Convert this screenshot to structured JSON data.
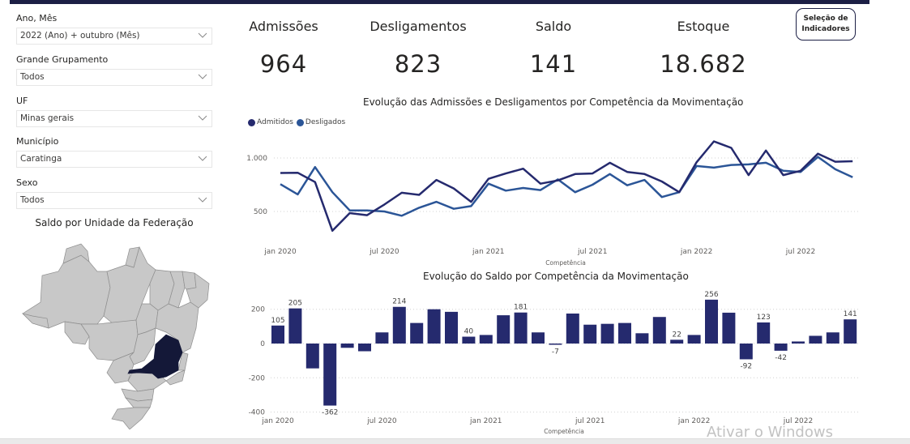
{
  "filters": [
    {
      "label": "Ano, Mês",
      "value": "2022 (Ano) + outubro (Mês)"
    },
    {
      "label": "Grande Grupamento",
      "value": "Todos"
    },
    {
      "label": "UF",
      "value": "Minas gerais"
    },
    {
      "label": "Município",
      "value": "Caratinga"
    },
    {
      "label": "Sexo",
      "value": "Todos"
    }
  ],
  "map": {
    "title": "Saldo por Unidade da Federação",
    "highlighted_state": "Minas Gerais",
    "base_color": "#c8c8c8",
    "highlight_color": "#141838"
  },
  "kpis": [
    {
      "label": "Admissões",
      "value": "964"
    },
    {
      "label": "Desligamentos",
      "value": "823"
    },
    {
      "label": "Saldo",
      "value": "141"
    },
    {
      "label": "Estoque",
      "value": "18.682"
    }
  ],
  "selection_button": {
    "line1": "Seleção de",
    "line2": "Indicadores"
  },
  "colors": {
    "admitidos": "#252a6e",
    "desligados": "#2b5597",
    "bars": "#252a6e",
    "topbar": "#1c1f45"
  },
  "watermark": "Ativar o Windows",
  "chart_data": [
    {
      "type": "line",
      "title": "Evolução das Admissões e Desligamentos por Competência da Movimentação",
      "xlabel": "Competência",
      "ylabel": "",
      "ylim": [
        200,
        1200
      ],
      "yticks": [
        500,
        1000
      ],
      "ytick_labels": [
        "500",
        "1.000"
      ],
      "xtick_labels": [
        "jan 2020",
        "jul 2020",
        "jan 2021",
        "jul 2021",
        "jan 2022",
        "jul 2022"
      ],
      "xtick_index": [
        0,
        6,
        12,
        18,
        24,
        30
      ],
      "grid": true,
      "legend_position": "top-left",
      "x": [
        "jan 2020",
        "fev 2020",
        "mar 2020",
        "abr 2020",
        "mai 2020",
        "jun 2020",
        "jul 2020",
        "ago 2020",
        "set 2020",
        "out 2020",
        "nov 2020",
        "dez 2020",
        "jan 2021",
        "fev 2021",
        "mar 2021",
        "abr 2021",
        "mai 2021",
        "jun 2021",
        "jul 2021",
        "ago 2021",
        "set 2021",
        "out 2021",
        "nov 2021",
        "dez 2021",
        "jan 2022",
        "fev 2022",
        "mar 2022",
        "abr 2022",
        "mai 2022",
        "jun 2022",
        "jul 2022",
        "ago 2022",
        "set 2022",
        "out 2022"
      ],
      "series": [
        {
          "name": "Admitidos",
          "values": [
            860,
            862,
            775,
            320,
            485,
            465,
            565,
            675,
            655,
            795,
            715,
            590,
            805,
            855,
            900,
            760,
            790,
            850,
            855,
            955,
            870,
            850,
            780,
            680,
            960,
            1155,
            1095,
            840,
            1070,
            840,
            880,
            1040,
            965,
            970
          ]
        },
        {
          "name": "Desligados",
          "values": [
            755,
            660,
            915,
            680,
            510,
            510,
            500,
            460,
            535,
            590,
            525,
            550,
            760,
            695,
            720,
            700,
            800,
            680,
            750,
            850,
            745,
            795,
            635,
            680,
            925,
            910,
            935,
            940,
            955,
            880,
            870,
            1010,
            895,
            820
          ]
        }
      ]
    },
    {
      "type": "bar",
      "title": "Evolução do Saldo por Competência da Movimentação",
      "xlabel": "Competência",
      "ylabel": "",
      "ylim": [
        -400,
        250
      ],
      "yticks": [
        -400,
        -200,
        0,
        200
      ],
      "ytick_labels": [
        "-400",
        "-200",
        "0",
        "200"
      ],
      "xtick_labels": [
        "jan 2020",
        "jul 2020",
        "jan 2021",
        "jul 2021",
        "jan 2022",
        "jul 2022"
      ],
      "xtick_index": [
        0,
        6,
        12,
        18,
        24,
        30
      ],
      "grid": true,
      "categories": [
        "jan 2020",
        "fev 2020",
        "mar 2020",
        "abr 2020",
        "mai 2020",
        "jun 2020",
        "jul 2020",
        "ago 2020",
        "set 2020",
        "out 2020",
        "nov 2020",
        "dez 2020",
        "jan 2021",
        "fev 2021",
        "mar 2021",
        "abr 2021",
        "mai 2021",
        "jun 2021",
        "jul 2021",
        "ago 2021",
        "set 2021",
        "out 2021",
        "nov 2021",
        "dez 2021",
        "jan 2022",
        "fev 2022",
        "mar 2022",
        "abr 2022",
        "mai 2022",
        "jun 2022",
        "jul 2022",
        "ago 2022",
        "set 2022",
        "out 2022"
      ],
      "values": [
        105,
        205,
        -145,
        -362,
        -25,
        -45,
        65,
        214,
        120,
        200,
        185,
        40,
        50,
        165,
        181,
        65,
        -7,
        175,
        110,
        115,
        120,
        60,
        155,
        22,
        50,
        256,
        180,
        -92,
        123,
        -42,
        12,
        45,
        65,
        141
      ],
      "data_labels": {
        "0": "105",
        "1": "205",
        "3": "-362",
        "7": "214",
        "11": "40",
        "14": "181",
        "16": "-7",
        "23": "22",
        "25": "256",
        "27": "-92",
        "28": "123",
        "29": "-42",
        "33": "141"
      }
    }
  ]
}
